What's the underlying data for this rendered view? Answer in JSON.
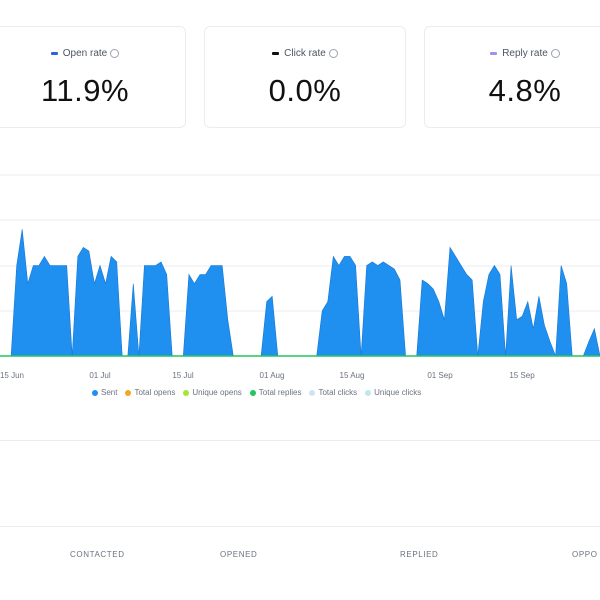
{
  "cards": [
    {
      "label": "Open rate",
      "value": "11.9%",
      "swatch": "#2563eb"
    },
    {
      "label": "Click rate",
      "value": "0.0%",
      "swatch": "#111111"
    },
    {
      "label": "Reply rate",
      "value": "4.8%",
      "swatch": "#a78bfa"
    }
  ],
  "legend": [
    {
      "label": "Sent",
      "color": "#1f8ff0"
    },
    {
      "label": "Total opens",
      "color": "#f5a623"
    },
    {
      "label": "Unique opens",
      "color": "#a3e635"
    },
    {
      "label": "Total replies",
      "color": "#22c55e"
    },
    {
      "label": "Total clicks",
      "color": "#cfe3f7"
    },
    {
      "label": "Unique clicks",
      "color": "#bfe7ee"
    }
  ],
  "stages": [
    "CONTACTED",
    "OPENED",
    "REPLIED",
    "OPPO"
  ],
  "chart_data": {
    "type": "area",
    "x_ticks": [
      "15 Jun",
      "01 Jul",
      "15 Jul",
      "01 Aug",
      "15 Aug",
      "01 Sep",
      "15 Sep"
    ],
    "colors": {
      "sent": "#1f8ff0",
      "replies": "#22c55e"
    },
    "series": [
      {
        "values": [
          0,
          0,
          0,
          0.5,
          0.7,
          0.4,
          0.5,
          0.5,
          0.55,
          0.5,
          0.5,
          0.5,
          0.5,
          0,
          0.55,
          0.6,
          0.58,
          0.4,
          0.5,
          0.4,
          0.55,
          0.52,
          0,
          0,
          0.4,
          0,
          0.5,
          0.5,
          0.5,
          0.52,
          0.45,
          0,
          0,
          0,
          0.45,
          0.4,
          0.45,
          0.45,
          0.5,
          0.5,
          0.5,
          0.2,
          0,
          0,
          0,
          0,
          0,
          0,
          0.3,
          0.33,
          0,
          0,
          0,
          0,
          0,
          0,
          0,
          0,
          0.25,
          0.3,
          0.55,
          0.5,
          0.55,
          0.55,
          0.5,
          0,
          0.5,
          0.52,
          0.5,
          0.52,
          0.5,
          0.48,
          0.42,
          0,
          0,
          0,
          0.42,
          0.4,
          0.37,
          0.3,
          0.2,
          0.6,
          0.55,
          0.5,
          0.45,
          0.42,
          0,
          0.3,
          0.45,
          0.5,
          0.45,
          0,
          0.5,
          0.2,
          0.22,
          0.3,
          0.15,
          0.33,
          0.17,
          0.08,
          0,
          0.5,
          0.4,
          0,
          0,
          0,
          0.08,
          0.15,
          0
        ]
      }
    ]
  }
}
